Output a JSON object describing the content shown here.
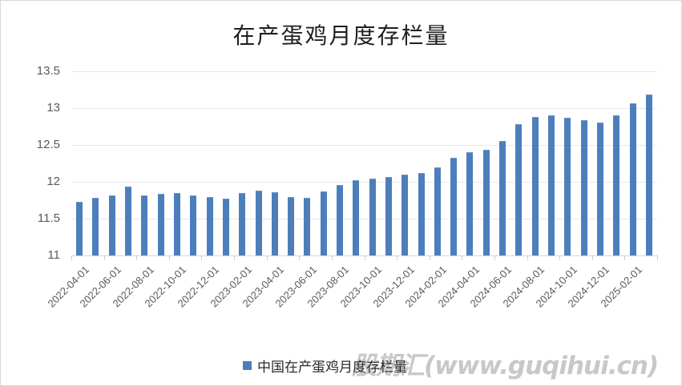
{
  "watermark": "股期汇(www.guqihui.cn)",
  "colors": {
    "bar": "#4d7ebc",
    "gridline": "#e6e8ec",
    "axis_line": "#d6d6d6",
    "tick": "#cfcfcf",
    "axis_text": "#595959",
    "title_text": "#1f1f1f",
    "watermark_text": "#bfbfbf",
    "frame_border": "#d9d9d9"
  },
  "chart_data": {
    "type": "bar",
    "title": "在产蛋鸡月度存栏量",
    "legend": "中国在产蛋鸡月度存栏量",
    "legend_position": "bottom",
    "grid": "horizontal",
    "ylim": [
      11,
      13.5
    ],
    "y_tick_step": 0.5,
    "y_tick_labels": [
      "13.5",
      "13",
      "12.5",
      "12",
      "11.5",
      "11"
    ],
    "x_tick_labels": [
      "2022-04-01",
      "2022-06-01",
      "2022-08-01",
      "2022-10-01",
      "2022-12-01",
      "2023-02-01",
      "2023-04-01",
      "2023-06-01",
      "2023-08-01",
      "2023-10-01",
      "2023-12-01",
      "2024-02-01",
      "2024-04-01",
      "2024-06-01",
      "2024-08-01",
      "2024-10-01",
      "2024-12-01",
      "2025-02-01"
    ],
    "categories": [
      "2022-04",
      "2022-05",
      "2022-06",
      "2022-07",
      "2022-08",
      "2022-09",
      "2022-10",
      "2022-11",
      "2022-12",
      "2023-01",
      "2023-02",
      "2023-03",
      "2023-04",
      "2023-05",
      "2023-06",
      "2023-07",
      "2023-08",
      "2023-09",
      "2023-10",
      "2023-11",
      "2023-12",
      "2024-01",
      "2024-02",
      "2024-03",
      "2024-04",
      "2024-05",
      "2024-06",
      "2024-07",
      "2024-08",
      "2024-09",
      "2024-10",
      "2024-11",
      "2024-12",
      "2025-01",
      "2025-02",
      "2025-03"
    ],
    "values": [
      11.73,
      11.78,
      11.81,
      11.94,
      11.82,
      11.84,
      11.85,
      11.81,
      11.79,
      11.77,
      11.85,
      11.88,
      11.86,
      11.79,
      11.78,
      11.87,
      11.96,
      12.02,
      12.04,
      12.06,
      12.1,
      12.12,
      12.2,
      12.33,
      12.4,
      12.44,
      12.55,
      12.78,
      12.88,
      12.9,
      12.87,
      12.84,
      12.8,
      12.9,
      13.06,
      13.19
    ]
  }
}
